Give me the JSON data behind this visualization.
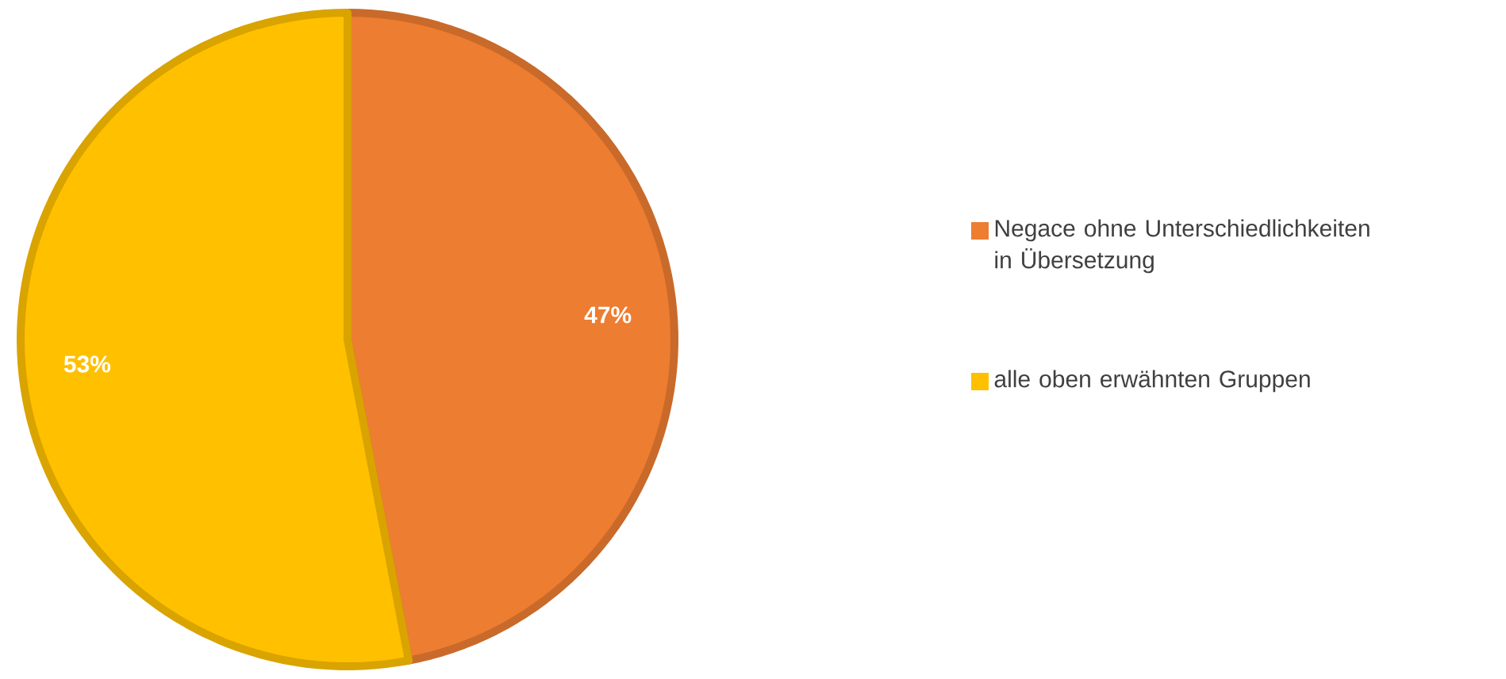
{
  "chart_data": {
    "type": "pie",
    "categories": [
      "Negace ohne Unterschiedlichkeiten in Übersetzung",
      "alle oben erwähnten Gruppen"
    ],
    "values": [
      47,
      53
    ],
    "colors": [
      "#ed7d31",
      "#ffc000"
    ],
    "value_labels": [
      "47%",
      "53%"
    ],
    "legend": "right"
  }
}
